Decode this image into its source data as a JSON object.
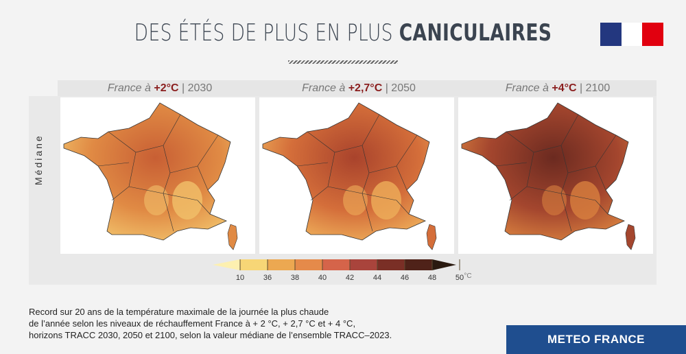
{
  "header": {
    "title_light": "DES ÉTÉS DE PLUS EN PLUS ",
    "title_bold": "CANICULAIRES"
  },
  "logo": {
    "name": "Marianne République Française",
    "colors": [
      "#23377f",
      "#ffffff",
      "#e1000f"
    ]
  },
  "side_label": "Médiane",
  "panels": [
    {
      "prefix": "France à ",
      "temp": "+2°C",
      "sep": " | ",
      "year": "2030",
      "colors": [
        "#f1c06a",
        "#e08a44",
        "#c85f34"
      ]
    },
    {
      "prefix": "France à ",
      "temp": "+2,7°C",
      "sep": " | ",
      "year": "2050",
      "colors": [
        "#eeae5a",
        "#d46e3a",
        "#a9432c"
      ]
    },
    {
      "prefix": "France à ",
      "temp": "+4°C",
      "sep": " | ",
      "year": "2100",
      "colors": [
        "#d8803f",
        "#a4462e",
        "#6b2a20"
      ]
    }
  ],
  "colorbar": {
    "ticks": [
      "10",
      "36",
      "38",
      "40",
      "42",
      "44",
      "46",
      "48",
      "50"
    ],
    "unit": "°C",
    "colors": [
      "#fdf0b0",
      "#f7d676",
      "#eca851",
      "#e58a4a",
      "#d5644a",
      "#a9443c",
      "#7a2f26",
      "#4f2219",
      "#2a1a10"
    ]
  },
  "caption": [
    "Record sur 20 ans de la température maximale de la journée la plus chaude",
    "de l’année selon les niveaux de réchauffement France à + 2 °C, + 2,7 °C et + 4 °C,",
    "horizons TRACC 2030, 2050 et 2100, selon la valeur médiane de l’ensemble TRACC–2023."
  ],
  "footer": {
    "brand": "METEO FRANCE"
  }
}
